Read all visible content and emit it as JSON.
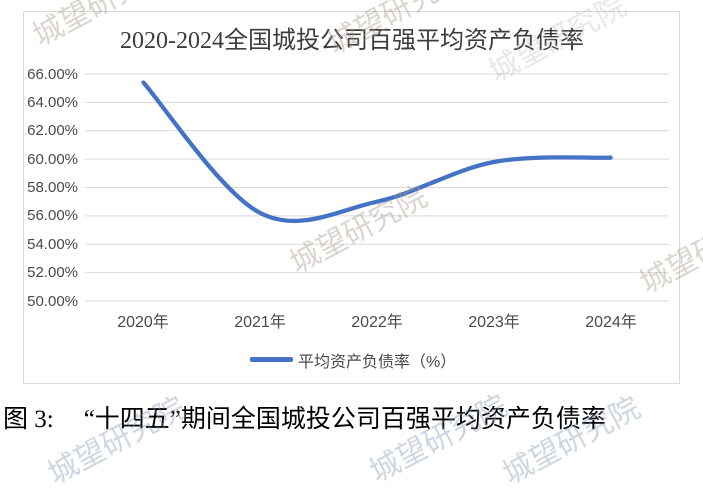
{
  "watermark_text": "城望研究院",
  "chart": {
    "title": "2020-2024全国城投公司百强平均资产负债率",
    "legend_label": "平均资产负债率（%）",
    "line_color": "#4472C4",
    "grid_color": "#D9D9D9"
  },
  "chart_data": {
    "type": "line",
    "title": "2020-2024全国城投公司百强平均资产负债率",
    "categories": [
      "2020年",
      "2021年",
      "2022年",
      "2023年",
      "2024年"
    ],
    "series": [
      {
        "name": "平均资产负债率（%）",
        "values": [
          65.4,
          56.2,
          57.0,
          59.8,
          60.1
        ]
      }
    ],
    "unit": "%",
    "ylim": [
      50,
      66
    ],
    "y_tick_step": 2,
    "y_tick_labels": [
      "66.00%",
      "64.00%",
      "62.00%",
      "60.00%",
      "58.00%",
      "56.00%",
      "54.00%",
      "52.00%",
      "50.00%"
    ],
    "grid": true,
    "legend_position": "bottom",
    "smooth": true
  },
  "caption": {
    "prefix": "图 3:",
    "text": "“十四五”期间全国城投公司百强平均资产负债率"
  }
}
